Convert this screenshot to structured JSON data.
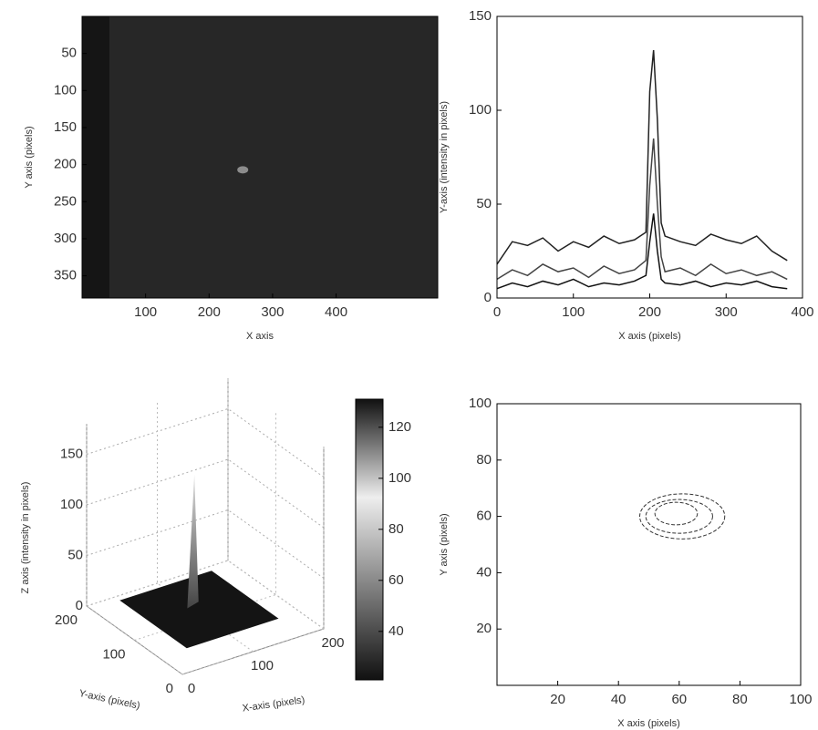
{
  "chart_data": [
    {
      "type": "image",
      "xlabel": "X axis",
      "ylabel": "Y axis (pixels)",
      "xlim": [
        0,
        560
      ],
      "ylim": [
        0,
        380
      ],
      "yreverse": true,
      "xticks": [
        100,
        200,
        300,
        400
      ],
      "yticks": [
        50,
        100,
        150,
        200,
        250,
        300,
        350
      ],
      "spot": {
        "x": 253,
        "y": 207
      }
    },
    {
      "type": "line",
      "xlabel": "X axis (pixels)",
      "ylabel": "Y-axis (intensity in pixels)",
      "xlim": [
        0,
        400
      ],
      "ylim": [
        0,
        150
      ],
      "xticks": [
        0,
        100,
        200,
        300,
        400
      ],
      "yticks": [
        0,
        50,
        100,
        150
      ],
      "x": [
        0,
        20,
        40,
        60,
        80,
        100,
        120,
        140,
        160,
        180,
        195,
        200,
        205,
        210,
        215,
        220,
        240,
        260,
        280,
        300,
        320,
        340,
        360,
        380
      ],
      "series": [
        {
          "color": "#222222",
          "values": [
            18,
            30,
            28,
            32,
            25,
            30,
            27,
            33,
            29,
            31,
            35,
            110,
            132,
            95,
            40,
            33,
            30,
            28,
            34,
            31,
            29,
            33,
            25,
            20
          ]
        },
        {
          "color": "#444444",
          "values": [
            10,
            15,
            12,
            18,
            14,
            16,
            11,
            17,
            13,
            15,
            20,
            60,
            85,
            50,
            22,
            14,
            16,
            12,
            18,
            13,
            15,
            12,
            14,
            10
          ]
        },
        {
          "color": "#111111",
          "values": [
            5,
            8,
            6,
            9,
            7,
            10,
            6,
            8,
            7,
            9,
            12,
            30,
            45,
            25,
            10,
            8,
            7,
            9,
            6,
            8,
            7,
            9,
            6,
            5
          ]
        }
      ]
    },
    {
      "type": "surface",
      "xlabel": "X-axis (pixels)",
      "ylabel": "Y-axis (pixels)",
      "zlabel": "Z axis (intensity in pixels)",
      "xlim": [
        0,
        200
      ],
      "ylim": [
        0,
        200
      ],
      "zlim": [
        0,
        180
      ],
      "xticks": [
        0,
        100,
        200
      ],
      "yticks": [
        0,
        100,
        200
      ],
      "zticks": [
        0,
        50,
        100,
        150
      ],
      "clim": [
        21,
        131
      ],
      "cticks": [
        40,
        60,
        80,
        100,
        120
      ],
      "surface": {
        "xrange": [
          40,
          170
        ],
        "yrange": [
          50,
          190
        ],
        "peak": {
          "x": 105,
          "y": 130,
          "z": 130
        }
      }
    },
    {
      "type": "contour",
      "xlabel": "X axis (pixels)",
      "ylabel": "Y axis (pixels)",
      "xlim": [
        0,
        100
      ],
      "ylim": [
        0,
        100
      ],
      "xticks": [
        20,
        40,
        60,
        80,
        100
      ],
      "yticks": [
        20,
        40,
        60,
        80,
        100
      ],
      "contours": [
        {
          "cx": 61,
          "cy": 60,
          "rx": 14,
          "ry": 8
        },
        {
          "cx": 60,
          "cy": 60,
          "rx": 11,
          "ry": 6
        },
        {
          "cx": 59,
          "cy": 61,
          "rx": 7,
          "ry": 4
        }
      ]
    }
  ]
}
